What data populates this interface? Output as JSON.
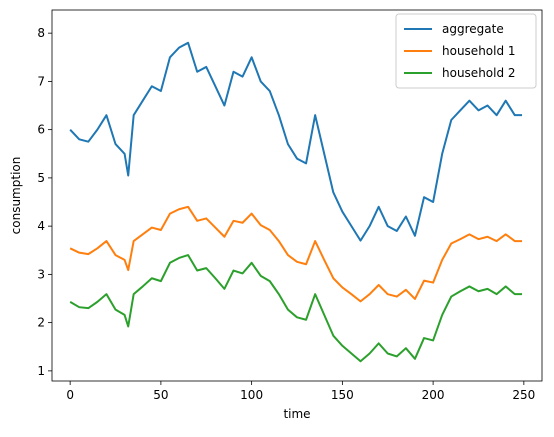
{
  "chart_data": {
    "type": "line",
    "x_label": "time",
    "y_label": "consumption",
    "x": [
      0,
      5,
      10,
      15,
      20,
      25,
      30,
      32,
      35,
      40,
      45,
      50,
      55,
      60,
      65,
      70,
      75,
      80,
      85,
      90,
      95,
      100,
      105,
      110,
      115,
      120,
      125,
      130,
      135,
      140,
      145,
      150,
      155,
      160,
      165,
      170,
      175,
      180,
      185,
      190,
      195,
      200,
      205,
      210,
      215,
      220,
      225,
      230,
      235,
      240,
      245,
      249
    ],
    "series": [
      {
        "name": "aggregate",
        "color": "#1f77b4",
        "values": [
          6.0,
          5.8,
          5.75,
          6.0,
          6.3,
          5.7,
          5.5,
          5.05,
          6.3,
          6.6,
          6.9,
          6.8,
          7.5,
          7.7,
          7.8,
          7.2,
          7.3,
          6.9,
          6.5,
          7.2,
          7.1,
          7.5,
          7.0,
          6.8,
          6.3,
          5.7,
          5.4,
          5.3,
          6.3,
          5.5,
          4.7,
          4.3,
          4.0,
          3.7,
          4.0,
          4.4,
          4.0,
          3.9,
          4.2,
          3.8,
          4.6,
          4.5,
          5.5,
          6.2,
          6.4,
          6.6,
          6.4,
          6.5,
          6.3,
          6.6,
          6.3,
          6.3
        ]
      },
      {
        "name": "household 1",
        "color": "#ff7f0e",
        "values": [
          3.54,
          3.45,
          3.42,
          3.54,
          3.69,
          3.4,
          3.3,
          3.09,
          3.69,
          3.83,
          3.97,
          3.92,
          4.26,
          4.35,
          4.4,
          4.11,
          4.16,
          3.97,
          3.78,
          4.11,
          4.07,
          4.26,
          4.02,
          3.92,
          3.69,
          3.4,
          3.26,
          3.21,
          3.69,
          3.3,
          2.92,
          2.73,
          2.59,
          2.44,
          2.59,
          2.78,
          2.59,
          2.54,
          2.68,
          2.49,
          2.87,
          2.83,
          3.3,
          3.64,
          3.73,
          3.83,
          3.73,
          3.78,
          3.69,
          3.83,
          3.69,
          3.69
        ]
      },
      {
        "name": "household 2",
        "color": "#2ca02c",
        "values": [
          2.43,
          2.32,
          2.3,
          2.43,
          2.59,
          2.27,
          2.16,
          1.92,
          2.59,
          2.75,
          2.92,
          2.86,
          3.24,
          3.34,
          3.4,
          3.08,
          3.13,
          2.92,
          2.7,
          3.08,
          3.02,
          3.24,
          2.97,
          2.86,
          2.59,
          2.27,
          2.11,
          2.06,
          2.59,
          2.16,
          1.73,
          1.52,
          1.36,
          1.2,
          1.36,
          1.57,
          1.36,
          1.3,
          1.47,
          1.25,
          1.68,
          1.63,
          2.16,
          2.54,
          2.65,
          2.75,
          2.65,
          2.7,
          2.59,
          2.75,
          2.59,
          2.59
        ]
      }
    ],
    "xlim": [
      -10,
      260
    ],
    "ylim": [
      0.79,
      8.48
    ],
    "xticks": [
      0,
      50,
      100,
      150,
      200,
      250
    ],
    "yticks": [
      1,
      2,
      3,
      4,
      5,
      6,
      7,
      8
    ],
    "grid": false,
    "legend": "upper right"
  }
}
